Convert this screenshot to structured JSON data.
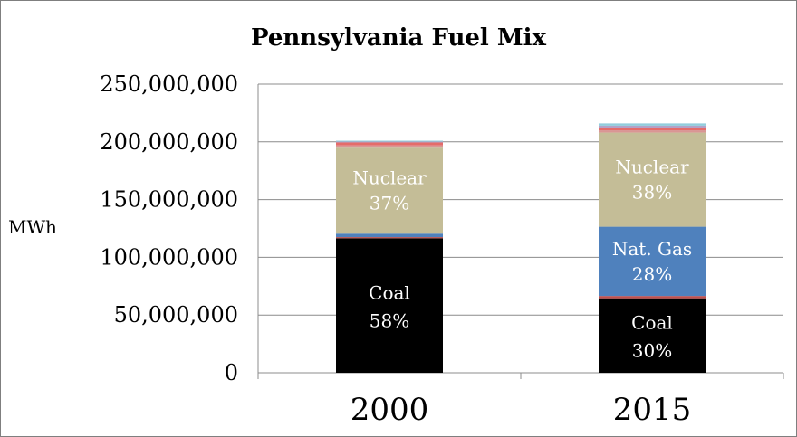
{
  "chart_data": {
    "type": "bar",
    "stacked": true,
    "title": "Pennsylvania Fuel Mix",
    "xlabel": "",
    "ylabel": "MWh",
    "ylim": [
      0,
      250000000
    ],
    "yticks": [
      0,
      50000000,
      100000000,
      150000000,
      200000000,
      250000000
    ],
    "ytick_labels": [
      "0",
      "50,000,000",
      "100,000,000",
      "150,000,000",
      "200,000,000",
      "250,000,000"
    ],
    "grid": true,
    "legend": "none",
    "categories": [
      "2000",
      "2015"
    ],
    "series": [
      {
        "values": [
          116500000,
          64500000
        ],
        "color": "#000000",
        "labels": [
          "Coal\n58%",
          "Coal\n30%"
        ],
        "label_color": "#ffffff"
      },
      {
        "values": [
          1000000,
          2000000
        ],
        "color": "#c0504d",
        "labels": [
          "",
          ""
        ]
      },
      {
        "values": [
          3000000,
          60000000
        ],
        "color": "#4f81bd",
        "labels": [
          "",
          "Nat. Gas\n28%"
        ],
        "label_color": "#ffffff"
      },
      {
        "values": [
          74500000,
          81500000
        ],
        "color": "#c4bd97",
        "labels": [
          "Nuclear\n37%",
          "Nuclear\n38%"
        ],
        "label_color": "#ffffff"
      },
      {
        "values": [
          2000000,
          2000000
        ],
        "color": "#d99694",
        "labels": [
          "",
          ""
        ]
      },
      {
        "values": [
          2500000,
          2000000
        ],
        "color": "#e46c6a",
        "labels": [
          "",
          ""
        ]
      },
      {
        "values": [
          700000,
          2000000
        ],
        "color": "#b3a2c7",
        "labels": [
          "",
          ""
        ]
      },
      {
        "values": [
          800000,
          2000000
        ],
        "color": "#93cddd",
        "labels": [
          "",
          ""
        ]
      }
    ]
  }
}
